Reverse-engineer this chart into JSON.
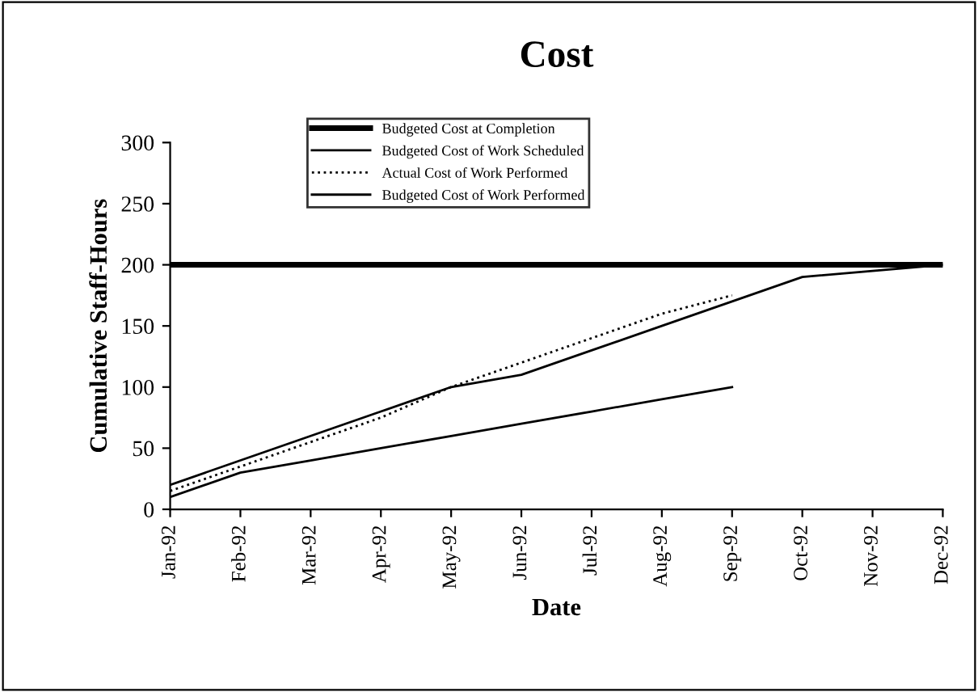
{
  "chart_data": {
    "type": "line",
    "title": "Cost",
    "xlabel": "Date",
    "ylabel": "Cumulative Staff-Hours",
    "categories": [
      "Jan-92",
      "Feb-92",
      "Mar-92",
      "Apr-92",
      "May-92",
      "Jun-92",
      "Jul-92",
      "Aug-92",
      "Sep-92",
      "Oct-92",
      "Nov-92",
      "Dec-92"
    ],
    "series": [
      {
        "name": "Budgeted Cost at Completion",
        "color": "#000000",
        "values": [
          200,
          200,
          200,
          200,
          200,
          200,
          200,
          200,
          200,
          200,
          200,
          200
        ]
      },
      {
        "name": "Budgeted Cost of Work Scheduled",
        "color": "#000000",
        "values": [
          20,
          40,
          60,
          80,
          100,
          110,
          130,
          150,
          170,
          190,
          195,
          200
        ]
      },
      {
        "name": "Actual Cost of Work Performed",
        "color": "#000000",
        "values": [
          15,
          35,
          55,
          75,
          100,
          120,
          140,
          160,
          175,
          null,
          null,
          null
        ],
        "line_style": "dotted"
      },
      {
        "name": "Budgeted Cost of Work Performed",
        "color": "#000000",
        "values": [
          10,
          30,
          40,
          50,
          60,
          70,
          80,
          90,
          100,
          null,
          null,
          null
        ]
      }
    ],
    "ylim": [
      0,
      300
    ],
    "yticks": [
      0,
      50,
      100,
      150,
      200,
      250,
      300
    ],
    "grid": false,
    "legend": "top",
    "marker": "none"
  }
}
